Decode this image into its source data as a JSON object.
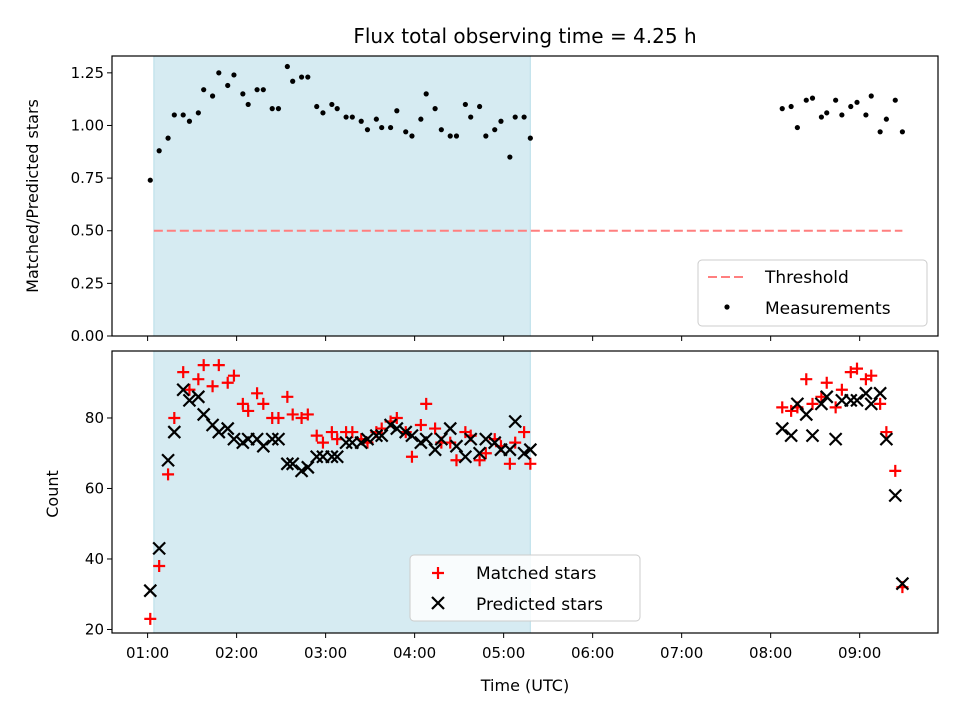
{
  "chart_data": [
    {
      "type": "scatter",
      "title": "Flux total observing time = 4.25 h",
      "ylabel": "Matched/Predicted stars",
      "xlabel": "",
      "ylim": [
        0,
        1.33
      ],
      "yticks": [
        "0.00",
        "0.25",
        "0.50",
        "0.75",
        "1.00",
        "1.25"
      ],
      "shaded_span": [
        1.07,
        5.3
      ],
      "shaded_color": "#add8e6",
      "legend": {
        "placement": "lower right",
        "entries": [
          "Threshold",
          "Measurements"
        ]
      },
      "threshold": {
        "name": "Threshold",
        "value": 0.5,
        "x_range": [
          1.07,
          9.48
        ],
        "color": "#ff7f7f",
        "style": "dashed"
      },
      "series": [
        {
          "name": "Measurements",
          "color": "#000000",
          "marker": "dot",
          "x": [
            1.03,
            1.13,
            1.23,
            1.3,
            1.4,
            1.47,
            1.57,
            1.63,
            1.73,
            1.8,
            1.9,
            1.97,
            2.07,
            2.13,
            2.23,
            2.3,
            2.4,
            2.47,
            2.57,
            2.63,
            2.73,
            2.8,
            2.9,
            2.97,
            3.07,
            3.13,
            3.23,
            3.3,
            3.4,
            3.47,
            3.57,
            3.63,
            3.73,
            3.8,
            3.9,
            3.97,
            4.07,
            4.13,
            4.23,
            4.3,
            4.4,
            4.47,
            4.57,
            4.63,
            4.73,
            4.8,
            4.9,
            4.97,
            5.07,
            5.13,
            5.23,
            5.3,
            8.13,
            8.23,
            8.3,
            8.4,
            8.47,
            8.57,
            8.63,
            8.73,
            8.8,
            8.9,
            8.97,
            9.07,
            9.13,
            9.23,
            9.3,
            9.4,
            9.48
          ],
          "y": [
            0.74,
            0.88,
            0.94,
            1.05,
            1.05,
            1.02,
            1.06,
            1.17,
            1.14,
            1.25,
            1.19,
            1.24,
            1.15,
            1.1,
            1.17,
            1.17,
            1.08,
            1.08,
            1.28,
            1.21,
            1.23,
            1.23,
            1.09,
            1.06,
            1.1,
            1.08,
            1.04,
            1.04,
            1.02,
            0.98,
            1.03,
            0.99,
            0.99,
            1.07,
            0.97,
            0.95,
            1.03,
            1.15,
            1.08,
            0.98,
            0.95,
            0.95,
            1.1,
            1.04,
            1.09,
            0.95,
            0.98,
            1.02,
            0.85,
            1.04,
            1.04,
            0.94,
            1.08,
            1.09,
            0.99,
            1.12,
            1.13,
            1.04,
            1.06,
            1.12,
            1.05,
            1.09,
            1.11,
            1.05,
            1.14,
            0.97,
            1.03,
            1.12,
            0.97
          ]
        }
      ]
    },
    {
      "type": "scatter",
      "title": "",
      "xlabel": "Time (UTC)",
      "ylabel": "Count",
      "ylim": [
        19,
        99
      ],
      "xlim": [
        0.6,
        9.88
      ],
      "yticks": [
        "20",
        "40",
        "60",
        "80"
      ],
      "xticks": [
        "01:00",
        "02:00",
        "03:00",
        "04:00",
        "05:00",
        "06:00",
        "07:00",
        "08:00",
        "09:00"
      ],
      "shaded_span": [
        1.07,
        5.3
      ],
      "shaded_color": "#add8e6",
      "legend": {
        "placement": "lower center",
        "entries": [
          "Matched stars",
          "Predicted stars"
        ]
      },
      "series": [
        {
          "name": "Matched stars",
          "color": "#ff0000",
          "marker": "plus",
          "x": [
            1.03,
            1.13,
            1.23,
            1.3,
            1.4,
            1.47,
            1.57,
            1.63,
            1.73,
            1.8,
            1.9,
            1.97,
            2.07,
            2.13,
            2.23,
            2.3,
            2.4,
            2.47,
            2.57,
            2.63,
            2.73,
            2.8,
            2.9,
            2.97,
            3.07,
            3.13,
            3.23,
            3.3,
            3.4,
            3.47,
            3.57,
            3.63,
            3.73,
            3.8,
            3.9,
            3.97,
            4.07,
            4.13,
            4.23,
            4.3,
            4.4,
            4.47,
            4.57,
            4.63,
            4.73,
            4.8,
            4.9,
            4.97,
            5.07,
            5.13,
            5.23,
            5.3,
            8.13,
            8.23,
            8.3,
            8.4,
            8.47,
            8.57,
            8.63,
            8.73,
            8.8,
            8.9,
            8.97,
            9.07,
            9.13,
            9.23,
            9.3,
            9.4,
            9.48
          ],
          "y": [
            23,
            38,
            64,
            80,
            93,
            88,
            91,
            95,
            89,
            95,
            90,
            92,
            84,
            82,
            87,
            84,
            80,
            80,
            86,
            81,
            80,
            81,
            75,
            73,
            76,
            74,
            76,
            76,
            74,
            73,
            76,
            77,
            79,
            80,
            76,
            69,
            78,
            84,
            77,
            73,
            73,
            68,
            76,
            75,
            68,
            70,
            74,
            72,
            67,
            73,
            76,
            67,
            83,
            82,
            83,
            91,
            84,
            86,
            90,
            83,
            88,
            93,
            94,
            91,
            92,
            84,
            76,
            65,
            32
          ]
        },
        {
          "name": "Predicted stars",
          "color": "#000000",
          "marker": "x",
          "x": [
            1.03,
            1.13,
            1.23,
            1.3,
            1.4,
            1.47,
            1.57,
            1.63,
            1.73,
            1.8,
            1.9,
            1.97,
            2.07,
            2.13,
            2.23,
            2.3,
            2.4,
            2.47,
            2.57,
            2.63,
            2.73,
            2.8,
            2.9,
            2.97,
            3.07,
            3.13,
            3.23,
            3.3,
            3.4,
            3.47,
            3.57,
            3.63,
            3.73,
            3.8,
            3.9,
            3.97,
            4.07,
            4.13,
            4.23,
            4.3,
            4.4,
            4.47,
            4.57,
            4.63,
            4.73,
            4.8,
            4.9,
            4.97,
            5.07,
            5.13,
            5.23,
            5.3,
            8.13,
            8.23,
            8.3,
            8.4,
            8.47,
            8.57,
            8.63,
            8.73,
            8.8,
            8.9,
            8.97,
            9.07,
            9.13,
            9.23,
            9.3,
            9.4,
            9.48
          ],
          "y": [
            31,
            43,
            68,
            76,
            88,
            85,
            86,
            81,
            78,
            76,
            77,
            74,
            73,
            74,
            74,
            72,
            74,
            74,
            67,
            67,
            65,
            66,
            69,
            69,
            69,
            69,
            73,
            73,
            73,
            74,
            75,
            75,
            78,
            77,
            76,
            75,
            73,
            74,
            71,
            74,
            77,
            72,
            69,
            74,
            70,
            74,
            73,
            71,
            71,
            79,
            70,
            71,
            77,
            75,
            84,
            81,
            75,
            84,
            86,
            74,
            85,
            85,
            85,
            87,
            84,
            87,
            74,
            58,
            33
          ]
        }
      ]
    }
  ]
}
